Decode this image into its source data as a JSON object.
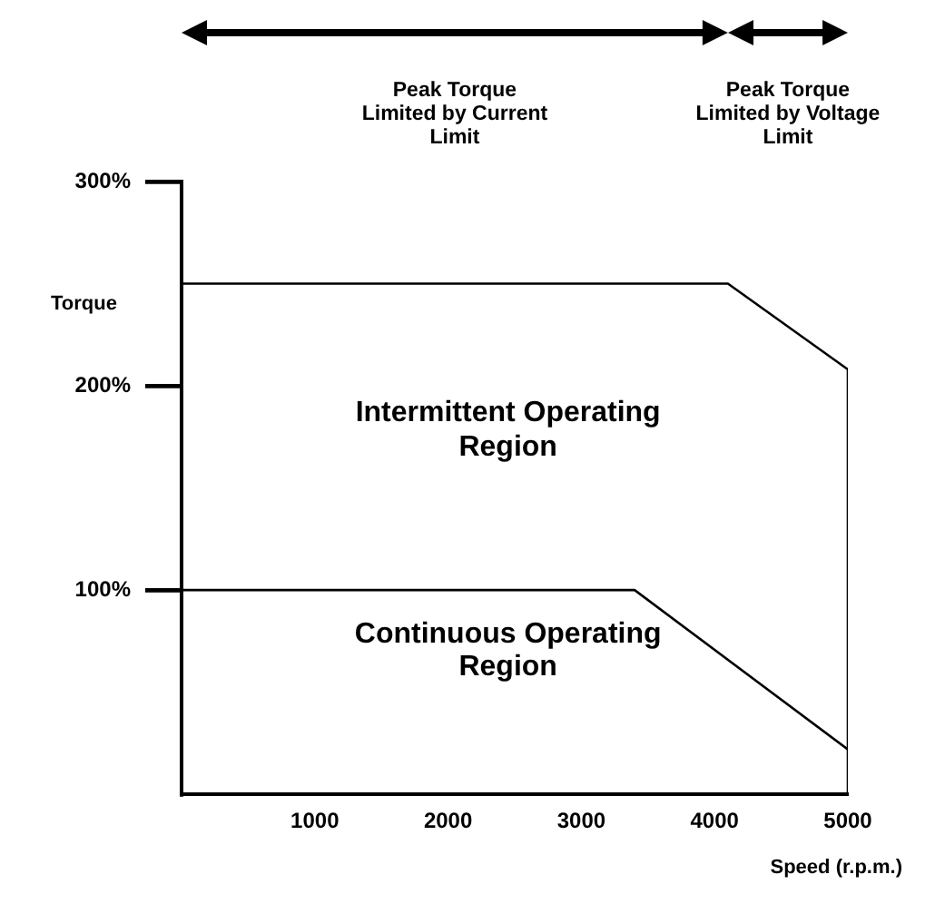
{
  "chart_data": {
    "type": "line",
    "xlabel": "Speed (r.p.m.)",
    "ylabel": "Torque",
    "xlim": [
      0,
      5000
    ],
    "ylim": [
      0,
      300
    ],
    "xticks": [
      1000,
      2000,
      3000,
      4000,
      5000
    ],
    "yticks": [
      {
        "value": 100,
        "label": "100%"
      },
      {
        "value": 200,
        "label": "200%"
      },
      {
        "value": 300,
        "label": "300%"
      }
    ],
    "series": [
      {
        "color": "#000000",
        "x": [
          0,
          4100,
          5000,
          5000
        ],
        "values": [
          250,
          250,
          208,
          0
        ]
      },
      {
        "color": "#000000",
        "x": [
          0,
          3400,
          5000
        ],
        "values": [
          100,
          100,
          22
        ]
      }
    ],
    "annotations": [
      "Peak Torque Limited by Current Limit",
      "Peak Torque Limited by Voltage Limit",
      "Intermittent Operating Region",
      "Continuous Operating Region"
    ]
  }
}
